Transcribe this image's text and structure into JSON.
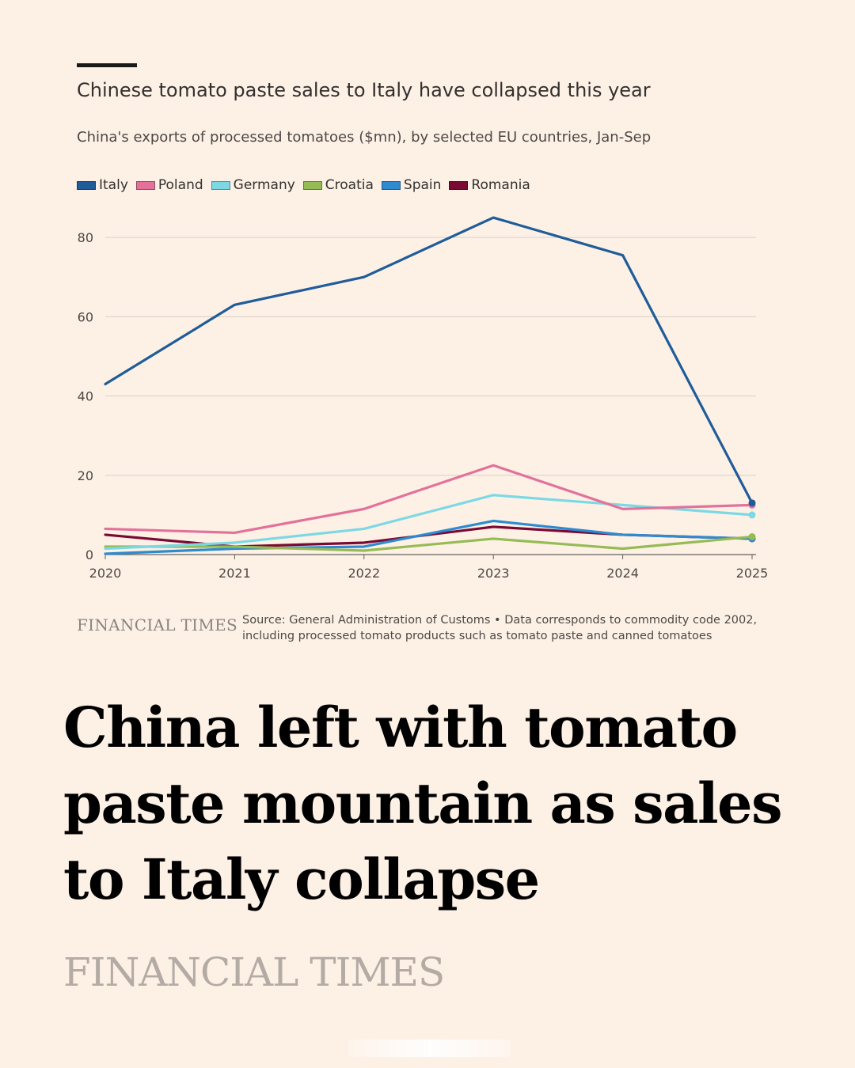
{
  "chart": {
    "title": "Chinese tomato paste sales to Italy have collapsed this year",
    "subtitle": "China's exports of processed tomatoes ($mn), by selected EU countries, Jan-Sep",
    "source": "Source: General Administration of Customs • Data corresponds to commodity code 2002, including processed tomato products such as tomato paste and canned tomatoes",
    "brand": "FINANCIAL TIMES"
  },
  "article": {
    "headline": "China left with tomato paste mountain as sales to Italy collapse",
    "brand": "FINANCIAL TIMES"
  },
  "colors": {
    "background": "#fdf1e6",
    "gridline": "#d9d0c8",
    "axis": "#66605c"
  },
  "chart_data": {
    "type": "line",
    "title": "Chinese tomato paste sales to Italy have collapsed this year",
    "subtitle": "China's exports of processed tomatoes ($mn), by selected EU countries, Jan-Sep",
    "x": [
      2020,
      2021,
      2022,
      2023,
      2024,
      2025
    ],
    "xlim": [
      2020,
      2025
    ],
    "ylim": [
      0,
      90
    ],
    "yticks": [
      0,
      20,
      40,
      60,
      80
    ],
    "grid": true,
    "legend": "top-left",
    "series": [
      {
        "name": "Italy",
        "color": "#1f5c99",
        "values": [
          43,
          63,
          70,
          85,
          75.5,
          13
        ]
      },
      {
        "name": "Poland",
        "color": "#e3719a",
        "values": [
          6.5,
          5.5,
          11.5,
          22.5,
          11.5,
          12.5
        ]
      },
      {
        "name": "Germany",
        "color": "#7dd8e5",
        "values": [
          1.5,
          3,
          6.5,
          15,
          12.5,
          10
        ]
      },
      {
        "name": "Croatia",
        "color": "#96bb54",
        "values": [
          2,
          2,
          1,
          4,
          1.5,
          4.5
        ]
      },
      {
        "name": "Spain",
        "color": "#2e8bd0",
        "values": [
          0.2,
          1.5,
          2,
          8.5,
          5,
          4
        ]
      },
      {
        "name": "Romania",
        "color": "#7a0a33",
        "values": [
          5,
          2,
          3,
          7,
          5,
          4
        ]
      }
    ]
  }
}
